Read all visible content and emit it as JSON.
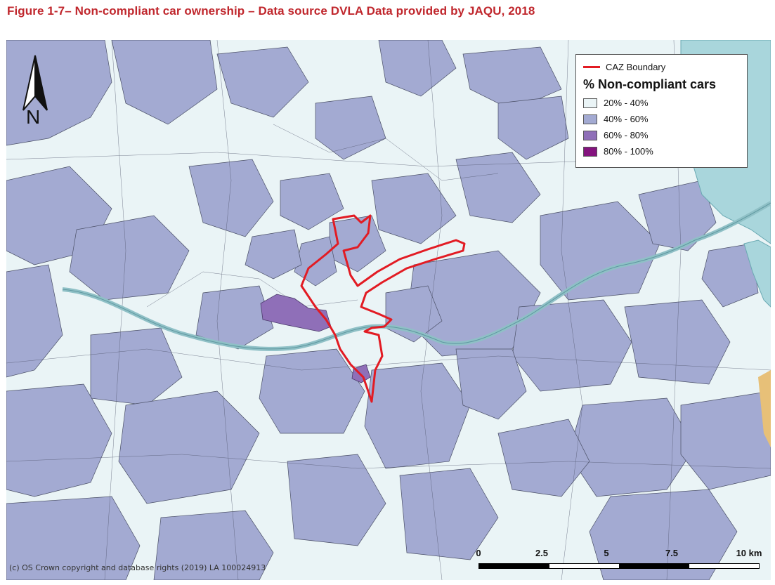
{
  "figure": {
    "title": "Figure 1-7– Non-compliant car ownership – Data source DVLA Data provided by JAQU, 2018"
  },
  "north_arrow": {
    "label": "N",
    "icon": "north-arrow-icon"
  },
  "legend": {
    "boundary_label": "CAZ Boundary",
    "boundary_color": "#e21b23",
    "title": "% Non-compliant cars",
    "classes": [
      {
        "label": "20% - 40%",
        "color": "#eaf4f6"
      },
      {
        "label": "40% - 60%",
        "color": "#a3aad2"
      },
      {
        "label": "60% - 80%",
        "color": "#8f6fb8"
      },
      {
        "label": "80% - 100%",
        "color": "#84137e"
      }
    ]
  },
  "scale_bar": {
    "labels": [
      "0",
      "2.5",
      "5",
      "7.5",
      "10 km"
    ]
  },
  "copyright": "(c) OS Crown copyright and database rights (2019) LA 100024913",
  "colors": {
    "river": "#8fc0c6",
    "sea": "#a9d6dc",
    "coast": "#e7c078"
  }
}
